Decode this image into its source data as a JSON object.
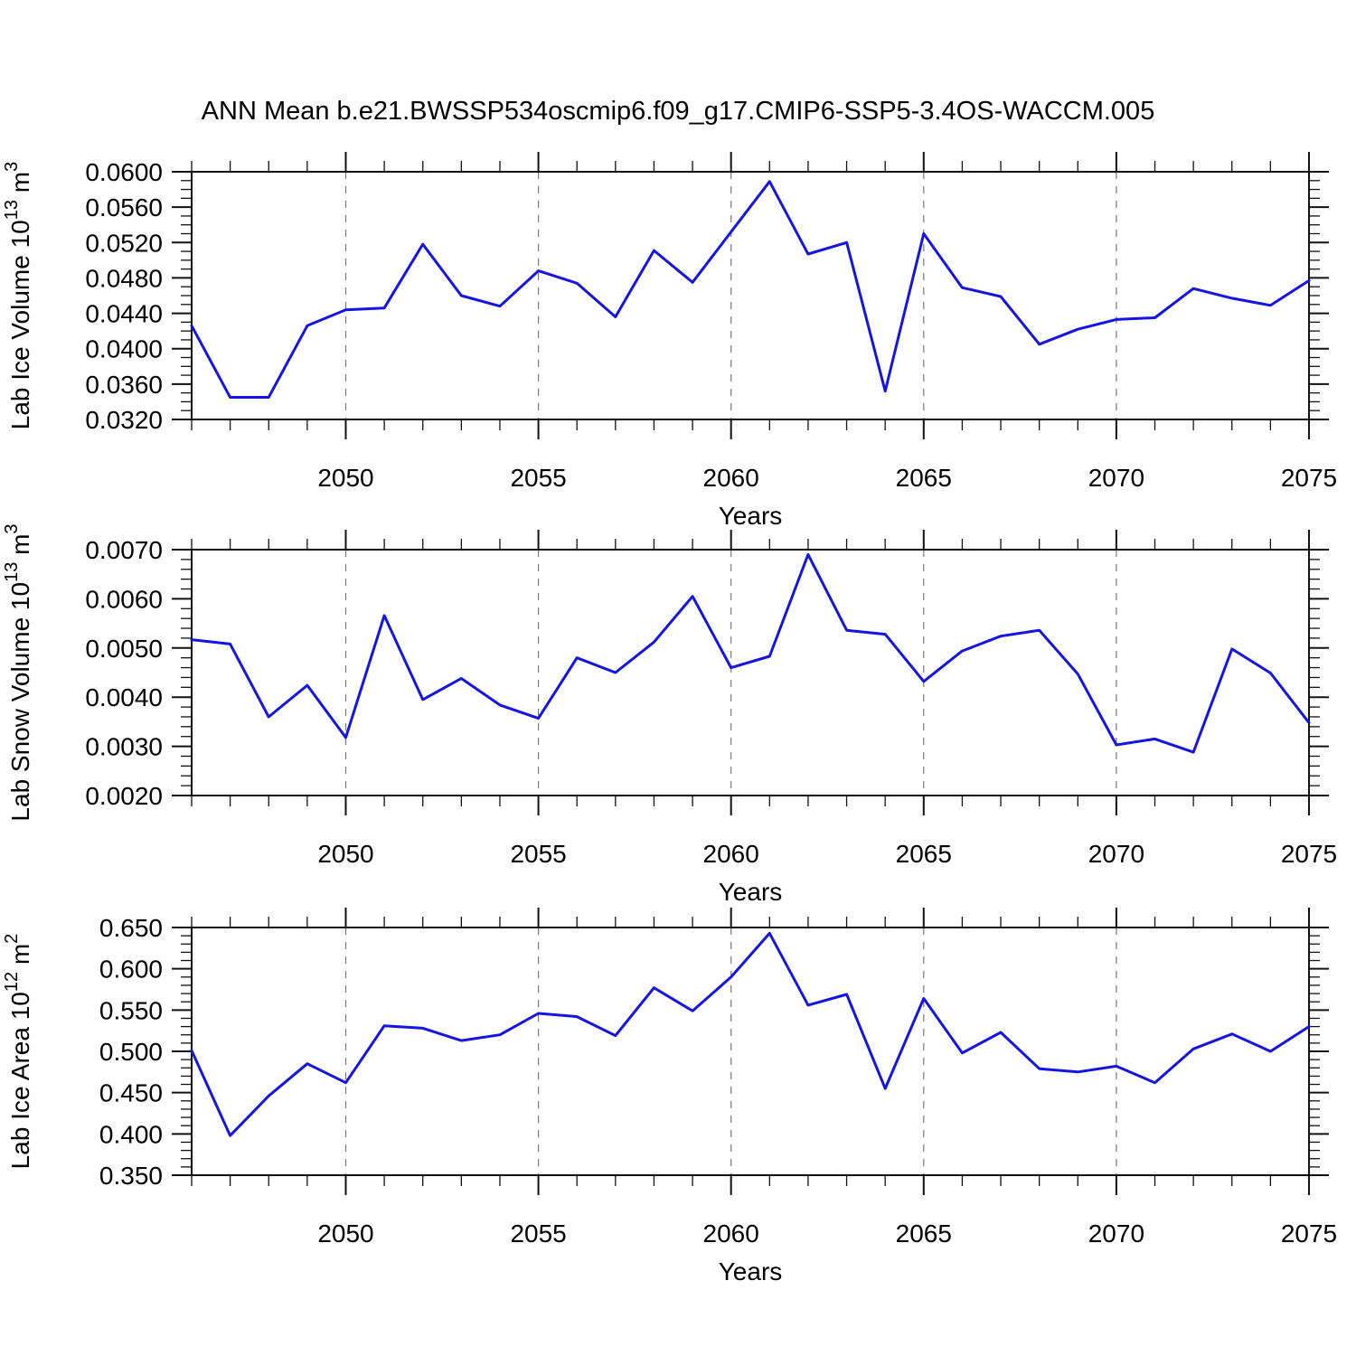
{
  "title": "ANN Mean b.e21.BWSSP534oscmip6.f09_g17.CMIP6-SSP5-3.4OS-WACCM.005",
  "colors": {
    "line": "#1414e6",
    "grid": "#7a7a7a",
    "axis": "#111111",
    "text": "#000000"
  },
  "x_axis": {
    "label": "Years",
    "range": [
      2046,
      2075
    ],
    "major_ticks": [
      2050,
      2055,
      2060,
      2065,
      2070,
      2075
    ],
    "major_tick_labels": [
      "2050",
      "2055",
      "2060",
      "2065",
      "2070",
      "2075"
    ],
    "grid_years": [
      2050,
      2055,
      2060,
      2065,
      2070
    ],
    "minor_tick_every": 1
  },
  "chart_data": [
    {
      "type": "line",
      "name": "lab-ice-volume",
      "ylabel_main": "Lab Ice Volume 10",
      "ylabel_exp": "13",
      "ylabel_unit": " m",
      "ylabel_unit_exp": "3",
      "xlabel": "Years",
      "ylim": [
        0.032,
        0.06
      ],
      "y_major_ticks": [
        0.032,
        0.036,
        0.04,
        0.044,
        0.048,
        0.052,
        0.056,
        0.06
      ],
      "y_tick_labels": [
        "0.0320",
        "0.0360",
        "0.0400",
        "0.0440",
        "0.0480",
        "0.0520",
        "0.0560",
        "0.0600"
      ],
      "y_minor_step": 0.001,
      "x": [
        2046,
        2047,
        2048,
        2049,
        2050,
        2051,
        2052,
        2053,
        2054,
        2055,
        2056,
        2057,
        2058,
        2059,
        2060,
        2061,
        2062,
        2063,
        2064,
        2065,
        2066,
        2067,
        2068,
        2069,
        2070,
        2071,
        2072,
        2073,
        2074,
        2075
      ],
      "values": [
        0.0426,
        0.0345,
        0.0345,
        0.0426,
        0.0444,
        0.0446,
        0.0518,
        0.046,
        0.0448,
        0.0488,
        0.0474,
        0.0436,
        0.0511,
        0.0475,
        0.0532,
        0.0589,
        0.0507,
        0.052,
        0.0352,
        0.053,
        0.0469,
        0.0459,
        0.0405,
        0.0422,
        0.0433,
        0.0435,
        0.0468,
        0.0457,
        0.0449,
        0.0477
      ]
    },
    {
      "type": "line",
      "name": "lab-snow-volume",
      "ylabel_main": "Lab Snow Volume 10",
      "ylabel_exp": "13",
      "ylabel_unit": " m",
      "ylabel_unit_exp": "3",
      "xlabel": "Years",
      "ylim": [
        0.002,
        0.007
      ],
      "y_major_ticks": [
        0.002,
        0.003,
        0.004,
        0.005,
        0.006,
        0.007
      ],
      "y_tick_labels": [
        "0.0020",
        "0.0030",
        "0.0040",
        "0.0050",
        "0.0060",
        "0.0070"
      ],
      "y_minor_step": 0.0002,
      "x": [
        2046,
        2047,
        2048,
        2049,
        2050,
        2051,
        2052,
        2053,
        2054,
        2055,
        2056,
        2057,
        2058,
        2059,
        2060,
        2061,
        2062,
        2063,
        2064,
        2065,
        2066,
        2067,
        2068,
        2069,
        2070,
        2071,
        2072,
        2073,
        2074,
        2075
      ],
      "values": [
        0.00517,
        0.00508,
        0.0036,
        0.00424,
        0.00318,
        0.00566,
        0.00395,
        0.00438,
        0.00384,
        0.00357,
        0.0048,
        0.0045,
        0.00512,
        0.00605,
        0.0046,
        0.00483,
        0.0069,
        0.00536,
        0.00528,
        0.00432,
        0.00494,
        0.00524,
        0.00536,
        0.00447,
        0.00303,
        0.00315,
        0.00288,
        0.00498,
        0.00449,
        0.00348
      ]
    },
    {
      "type": "line",
      "name": "lab-ice-area",
      "ylabel_main": "Lab Ice Area 10",
      "ylabel_exp": "12",
      "ylabel_unit": " m",
      "ylabel_unit_exp": "2",
      "xlabel": "Years",
      "ylim": [
        0.35,
        0.65
      ],
      "y_major_ticks": [
        0.35,
        0.4,
        0.45,
        0.5,
        0.55,
        0.6,
        0.65
      ],
      "y_tick_labels": [
        "0.350",
        "0.400",
        "0.450",
        "0.500",
        "0.550",
        "0.600",
        "0.650"
      ],
      "y_minor_step": 0.01,
      "x": [
        2046,
        2047,
        2048,
        2049,
        2050,
        2051,
        2052,
        2053,
        2054,
        2055,
        2056,
        2057,
        2058,
        2059,
        2060,
        2061,
        2062,
        2063,
        2064,
        2065,
        2066,
        2067,
        2068,
        2069,
        2070,
        2071,
        2072,
        2073,
        2074,
        2075
      ],
      "values": [
        0.501,
        0.398,
        0.446,
        0.485,
        0.462,
        0.531,
        0.528,
        0.513,
        0.52,
        0.546,
        0.542,
        0.519,
        0.577,
        0.549,
        0.59,
        0.643,
        0.556,
        0.569,
        0.455,
        0.564,
        0.498,
        0.523,
        0.479,
        0.475,
        0.482,
        0.462,
        0.503,
        0.521,
        0.5,
        0.53
      ]
    }
  ]
}
